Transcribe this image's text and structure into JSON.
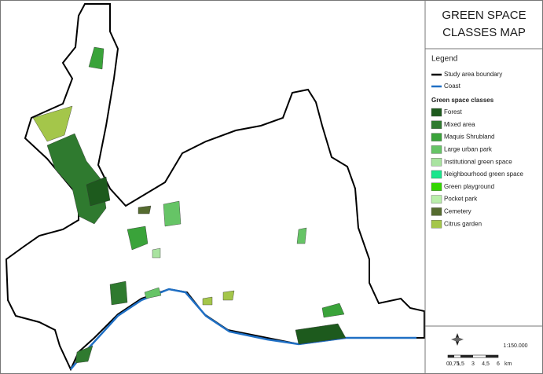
{
  "title": "GREEN SPACE CLASSES MAP",
  "legend": {
    "heading": "Legend",
    "lines": [
      {
        "label": "Study area boundary",
        "color": "#000000"
      },
      {
        "label": "Coast",
        "color": "#1f6fc4"
      }
    ],
    "classes_heading": "Green space classes",
    "classes": [
      {
        "label": "Forest",
        "color": "#1d5a1d"
      },
      {
        "label": "Mixed area",
        "color": "#2f7a2f"
      },
      {
        "label": "Maquis Shrubland",
        "color": "#3aa33a"
      },
      {
        "label": "Large urban park",
        "color": "#66c466"
      },
      {
        "label": "Institutional green space",
        "color": "#a9e3a0"
      },
      {
        "label": "Neighbourhood green space",
        "color": "#19e68c"
      },
      {
        "label": "Green playground",
        "color": "#33d600"
      },
      {
        "label": "Pocket park",
        "color": "#b9eeaa"
      },
      {
        "label": "Cemetery",
        "color": "#556b2f"
      },
      {
        "label": "Citrus garden",
        "color": "#a4c64a"
      }
    ]
  },
  "scale": {
    "ratio": "1:150.000",
    "labels": [
      "0",
      "0,75",
      "1,5",
      "3",
      "4,5",
      "6"
    ],
    "unit": "km"
  }
}
